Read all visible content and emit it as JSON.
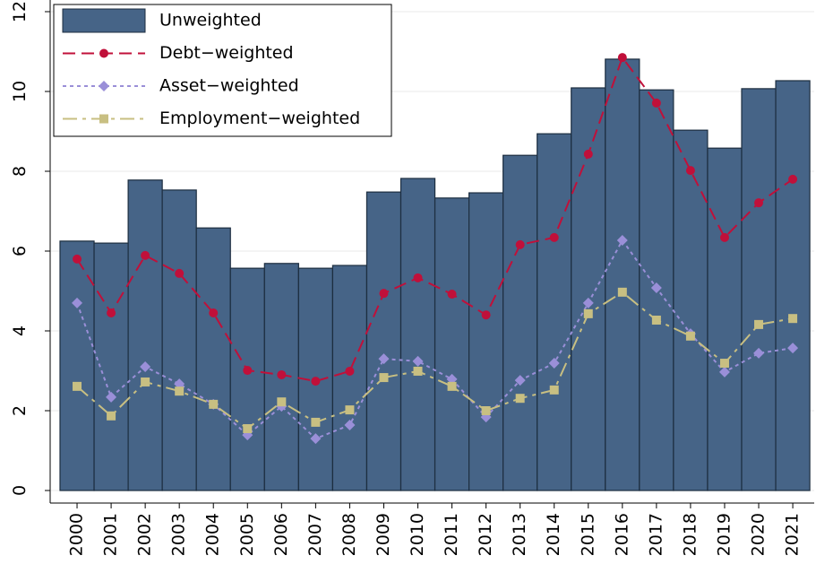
{
  "chart_data": {
    "type": "bar",
    "categories": [
      "2000",
      "2001",
      "2002",
      "2003",
      "2004",
      "2005",
      "2006",
      "2007",
      "2008",
      "2009",
      "2010",
      "2011",
      "2012",
      "2013",
      "2014",
      "2015",
      "2016",
      "2017",
      "2018",
      "2019",
      "2020",
      "2021"
    ],
    "series": [
      {
        "name": "Unweighted",
        "type": "bar",
        "color": "#466487",
        "values": [
          6.25,
          6.2,
          7.78,
          7.53,
          6.58,
          5.57,
          5.69,
          5.57,
          5.64,
          7.48,
          7.82,
          7.33,
          7.46,
          8.4,
          8.94,
          10.09,
          10.81,
          10.04,
          9.03,
          8.58,
          10.07,
          10.27
        ]
      },
      {
        "name": "Debt−weighted",
        "type": "line",
        "marker": "circle",
        "dash": "long",
        "color": "#c0103a",
        "values": [
          5.8,
          4.45,
          5.89,
          5.44,
          4.45,
          3.01,
          2.9,
          2.74,
          2.99,
          4.94,
          5.33,
          4.92,
          4.4,
          6.16,
          6.34,
          8.43,
          10.85,
          9.71,
          8.02,
          6.34,
          7.21,
          7.8
        ]
      },
      {
        "name": "Asset−weighted",
        "type": "line",
        "marker": "diamond",
        "dash": "short",
        "color": "#9a8fd8",
        "values": [
          4.7,
          2.34,
          3.1,
          2.67,
          2.16,
          1.39,
          2.11,
          1.3,
          1.64,
          3.3,
          3.24,
          2.79,
          1.84,
          2.76,
          3.19,
          4.7,
          6.27,
          5.08,
          3.93,
          2.97,
          3.44,
          3.57
        ]
      },
      {
        "name": "Employment−weighted",
        "type": "line",
        "marker": "square",
        "dash": "longshort",
        "color": "#c8bf82",
        "values": [
          2.61,
          1.87,
          2.72,
          2.49,
          2.16,
          1.55,
          2.22,
          1.71,
          2.02,
          2.83,
          2.99,
          2.61,
          2.0,
          2.31,
          2.52,
          4.43,
          4.97,
          4.27,
          3.87,
          3.19,
          4.16,
          4.31
        ]
      }
    ],
    "ylim": [
      0,
      12
    ],
    "yticks": [
      0,
      2,
      4,
      6,
      8,
      10,
      12
    ],
    "grid": true,
    "legend": "top-left"
  }
}
